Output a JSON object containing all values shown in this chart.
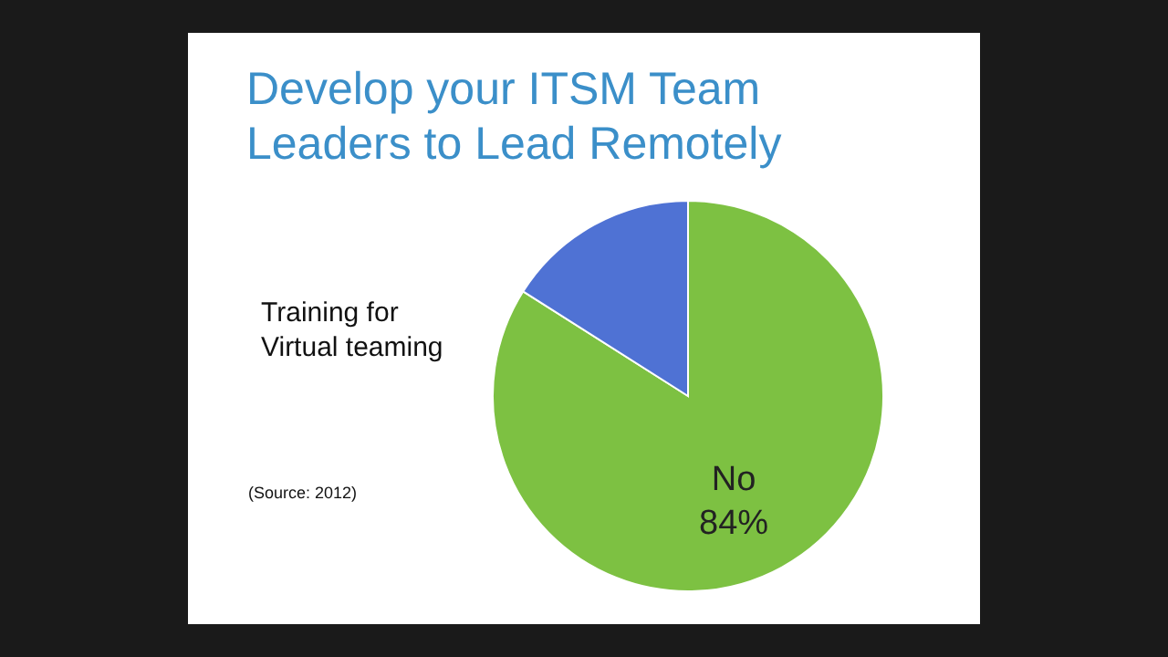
{
  "chart_data": {
    "type": "pie",
    "title": "Develop your ITSM Team Leaders to Lead Remotely",
    "subtitle": "Training for Virtual teaming",
    "categories": [
      "No",
      null
    ],
    "values": [
      84,
      16
    ],
    "colors": [
      "#7dc142",
      "#4f72d4"
    ],
    "value_labels": [
      "84%",
      null
    ],
    "annotations": [
      "(Source: 2012)"
    ]
  }
}
